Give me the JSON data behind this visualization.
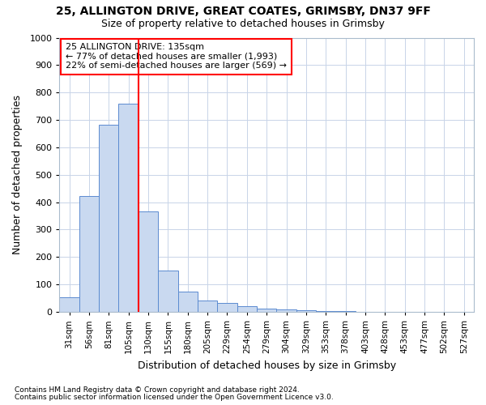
{
  "title1": "25, ALLINGTON DRIVE, GREAT COATES, GRIMSBY, DN37 9FF",
  "title2": "Size of property relative to detached houses in Grimsby",
  "xlabel": "Distribution of detached houses by size in Grimsby",
  "ylabel": "Number of detached properties",
  "categories": [
    "31sqm",
    "56sqm",
    "81sqm",
    "105sqm",
    "130sqm",
    "155sqm",
    "180sqm",
    "205sqm",
    "229sqm",
    "254sqm",
    "279sqm",
    "304sqm",
    "329sqm",
    "353sqm",
    "378sqm",
    "403sqm",
    "428sqm",
    "453sqm",
    "477sqm",
    "502sqm",
    "527sqm"
  ],
  "values": [
    52,
    422,
    682,
    758,
    365,
    152,
    75,
    41,
    32,
    20,
    12,
    10,
    5,
    3,
    2,
    1,
    1,
    0,
    0,
    0,
    0
  ],
  "bar_color": "#c9d9f0",
  "bar_edge_color": "#5b8bd0",
  "grid_color": "#c8d4e8",
  "background_color": "#ffffff",
  "vline_x": 3.5,
  "annotation_text1": "25 ALLINGTON DRIVE: 135sqm",
  "annotation_text2": "← 77% of detached houses are smaller (1,993)",
  "annotation_text3": "22% of semi-detached houses are larger (569) →",
  "footnote1": "Contains HM Land Registry data © Crown copyright and database right 2024.",
  "footnote2": "Contains public sector information licensed under the Open Government Licence v3.0.",
  "ylim": [
    0,
    1000
  ],
  "yticks": [
    0,
    100,
    200,
    300,
    400,
    500,
    600,
    700,
    800,
    900,
    1000
  ]
}
